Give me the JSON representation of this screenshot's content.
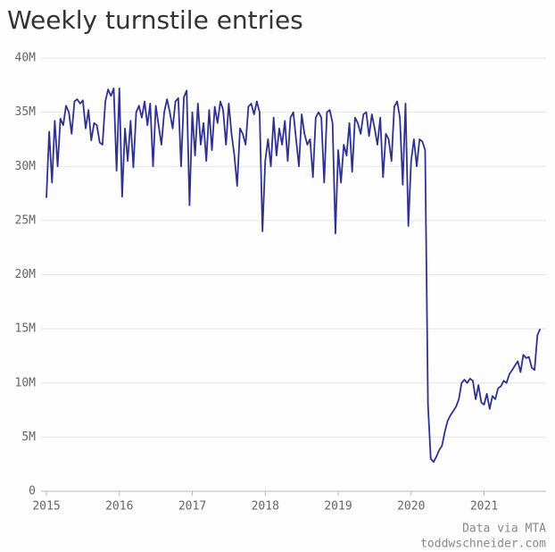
{
  "chart_data": {
    "type": "line",
    "title": "Weekly turnstile entries",
    "footnotes": [
      "Data via MTA",
      "toddwschneider.com"
    ],
    "xlim": [
      2015,
      2021.85
    ],
    "xticks": [
      2015,
      2016,
      2017,
      2018,
      2019,
      2020,
      2021
    ],
    "ylim": [
      0,
      40
    ],
    "yticks": [
      0,
      {
        "value": 5,
        "label": "5M"
      },
      {
        "value": 10,
        "label": "10M"
      },
      {
        "value": 15,
        "label": "15M"
      },
      {
        "value": 20,
        "label": "20M"
      },
      {
        "value": 25,
        "label": "25M"
      },
      {
        "value": 30,
        "label": "30M"
      },
      {
        "value": 35,
        "label": "35M"
      },
      {
        "value": 40,
        "label": "40M"
      }
    ],
    "grid": true,
    "x": [
      2015.0,
      2015.038,
      2015.077,
      2015.115,
      2015.154,
      2015.192,
      2015.231,
      2015.269,
      2015.308,
      2015.346,
      2015.385,
      2015.423,
      2015.462,
      2015.5,
      2015.538,
      2015.577,
      2015.615,
      2015.654,
      2015.692,
      2015.731,
      2015.769,
      2015.808,
      2015.846,
      2015.885,
      2015.923,
      2015.962,
      2016.0,
      2016.038,
      2016.077,
      2016.115,
      2016.154,
      2016.192,
      2016.231,
      2016.269,
      2016.308,
      2016.346,
      2016.385,
      2016.423,
      2016.462,
      2016.5,
      2016.538,
      2016.577,
      2016.615,
      2016.654,
      2016.692,
      2016.731,
      2016.769,
      2016.808,
      2016.846,
      2016.885,
      2016.923,
      2016.962,
      2017.0,
      2017.038,
      2017.077,
      2017.115,
      2017.154,
      2017.192,
      2017.231,
      2017.269,
      2017.308,
      2017.346,
      2017.385,
      2017.423,
      2017.462,
      2017.5,
      2017.538,
      2017.577,
      2017.615,
      2017.654,
      2017.692,
      2017.731,
      2017.769,
      2017.808,
      2017.846,
      2017.885,
      2017.923,
      2017.962,
      2018.0,
      2018.038,
      2018.077,
      2018.115,
      2018.154,
      2018.192,
      2018.231,
      2018.269,
      2018.308,
      2018.346,
      2018.385,
      2018.423,
      2018.462,
      2018.5,
      2018.538,
      2018.577,
      2018.615,
      2018.654,
      2018.692,
      2018.731,
      2018.769,
      2018.808,
      2018.846,
      2018.885,
      2018.923,
      2018.962,
      2019.0,
      2019.038,
      2019.077,
      2019.115,
      2019.154,
      2019.192,
      2019.231,
      2019.269,
      2019.308,
      2019.346,
      2019.385,
      2019.423,
      2019.462,
      2019.5,
      2019.538,
      2019.577,
      2019.615,
      2019.654,
      2019.692,
      2019.731,
      2019.769,
      2019.808,
      2019.846,
      2019.885,
      2019.923,
      2019.962,
      2020.0,
      2020.038,
      2020.077,
      2020.115,
      2020.154,
      2020.192,
      2020.231,
      2020.269,
      2020.308,
      2020.346,
      2020.385,
      2020.423,
      2020.462,
      2020.5,
      2020.538,
      2020.577,
      2020.615,
      2020.654,
      2020.692,
      2020.731,
      2020.769,
      2020.808,
      2020.846,
      2020.885,
      2020.923,
      2020.962,
      2021.0,
      2021.038,
      2021.077,
      2021.115,
      2021.154,
      2021.192,
      2021.231,
      2021.269,
      2021.308,
      2021.346,
      2021.385,
      2021.423,
      2021.462,
      2021.5,
      2021.538,
      2021.577,
      2021.615,
      2021.654,
      2021.692,
      2021.731,
      2021.769
    ],
    "series": [
      {
        "color": "#2e3192",
        "values": [
          27.1,
          33.2,
          28.5,
          34.2,
          30.0,
          34.4,
          33.8,
          35.6,
          35.0,
          33.0,
          36.0,
          36.2,
          35.8,
          36.1,
          33.5,
          35.2,
          32.4,
          34.0,
          33.8,
          32.2,
          32.0,
          36.0,
          37.1,
          36.5,
          37.2,
          29.6,
          37.2,
          27.2,
          33.5,
          30.5,
          34.2,
          29.9,
          35.0,
          35.6,
          34.5,
          36.0,
          33.8,
          35.8,
          30.0,
          35.6,
          33.8,
          32.0,
          35.0,
          36.2,
          35.0,
          33.5,
          36.0,
          36.3,
          30.0,
          36.4,
          37.0,
          26.4,
          35.0,
          31.0,
          35.8,
          32.0,
          34.0,
          30.5,
          35.2,
          31.5,
          35.5,
          34.0,
          36.0,
          35.2,
          32.0,
          35.8,
          33.0,
          31.0,
          28.2,
          33.5,
          33.0,
          32.0,
          35.5,
          35.8,
          34.8,
          36.0,
          35.0,
          24.0,
          30.5,
          32.5,
          30.0,
          34.5,
          31.0,
          33.5,
          32.0,
          34.2,
          30.5,
          34.5,
          35.0,
          32.5,
          30.0,
          34.8,
          33.0,
          32.0,
          32.5,
          29.0,
          34.5,
          35.0,
          34.5,
          28.5,
          35.0,
          35.2,
          34.0,
          23.8,
          31.5,
          28.5,
          32.0,
          31.0,
          34.0,
          29.5,
          34.5,
          34.0,
          33.0,
          34.8,
          35.0,
          32.8,
          34.8,
          33.5,
          32.0,
          34.5,
          29.0,
          33.0,
          32.5,
          30.5,
          35.5,
          36.0,
          34.5,
          28.3,
          35.8,
          24.5,
          30.5,
          32.5,
          30.0,
          32.5,
          32.3,
          31.5,
          8.0,
          3.0,
          2.7,
          3.2,
          3.8,
          4.2,
          5.5,
          6.5,
          7.0,
          7.4,
          7.8,
          8.5,
          10.0,
          10.3,
          10.0,
          10.4,
          10.2,
          8.5,
          9.8,
          8.2,
          8.0,
          9.0,
          7.6,
          8.8,
          8.5,
          9.5,
          9.7,
          10.2,
          10.0,
          10.8,
          11.2,
          11.6,
          12.0,
          11.0,
          12.6,
          12.3,
          12.4,
          11.4,
          11.2,
          14.4,
          15.0
        ]
      }
    ]
  }
}
